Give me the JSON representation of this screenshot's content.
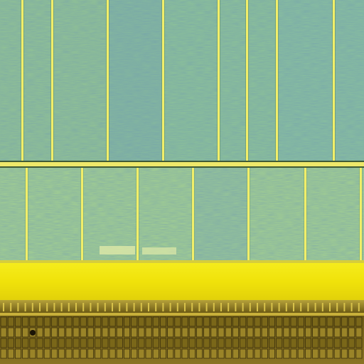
{
  "image": {
    "subject": "micrograph",
    "palette": {
      "cell_upper": "#8fc596",
      "cell_upper_alt": "#7eb4a0",
      "cell_lower": "#a8d48e",
      "cell_lower_alt": "#9dc99a",
      "grid_line": "#f1ee6a",
      "grid_shadow": "#2f4a2c",
      "band": "#f2e60b",
      "band_edge": "#d7c908",
      "pad_row": "#6e5c17",
      "pad_cell": "#b79b2c",
      "pad_dark": "#3a2f0c"
    }
  }
}
